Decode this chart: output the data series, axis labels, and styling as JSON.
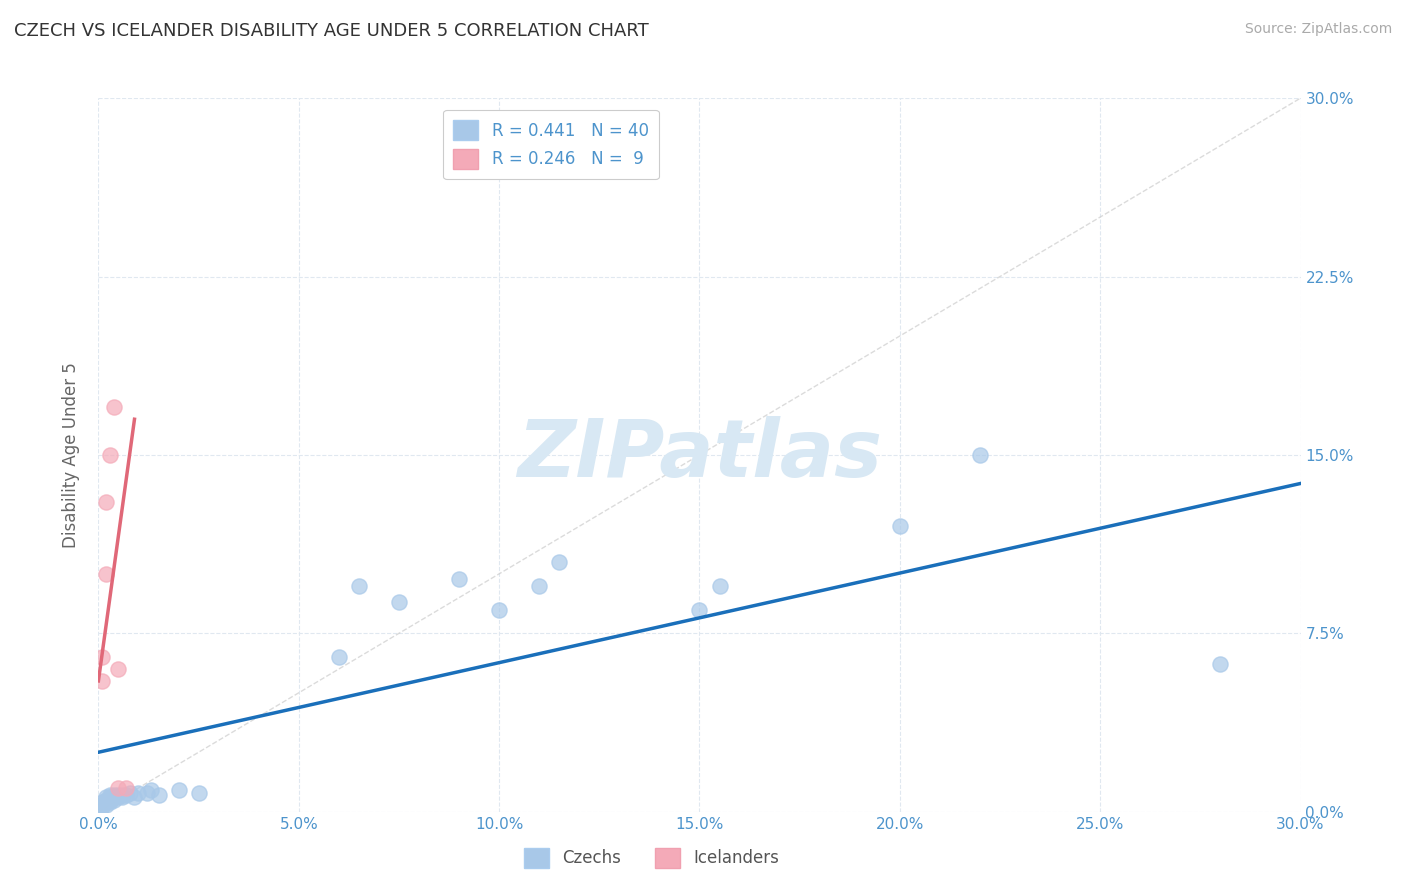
{
  "title": "CZECH VS ICELANDER DISABILITY AGE UNDER 5 CORRELATION CHART",
  "source": "Source: ZipAtlas.com",
  "ylabel": "Disability Age Under 5",
  "xlim": [
    0.0,
    0.3
  ],
  "ylim": [
    0.0,
    0.3
  ],
  "czech_R": 0.441,
  "czech_N": 40,
  "icelander_R": 0.246,
  "icelander_N": 9,
  "czech_color": "#a8c8e8",
  "icelander_color": "#f4aab8",
  "trend_czech_color": "#1a6fba",
  "trend_icelander_color": "#e06878",
  "diagonal_color": "#cccccc",
  "background_color": "#ffffff",
  "grid_color": "#e0e8f0",
  "title_color": "#333333",
  "axis_label_color": "#4d94cc",
  "watermark_color": "#d8e8f4",
  "czech_x": [
    0.001,
    0.001,
    0.001,
    0.001,
    0.002,
    0.002,
    0.002,
    0.002,
    0.003,
    0.003,
    0.003,
    0.003,
    0.004,
    0.004,
    0.004,
    0.005,
    0.005,
    0.006,
    0.006,
    0.007,
    0.008,
    0.009,
    0.01,
    0.012,
    0.013,
    0.015,
    0.02,
    0.025,
    0.06,
    0.065,
    0.075,
    0.09,
    0.1,
    0.11,
    0.115,
    0.15,
    0.155,
    0.2,
    0.22,
    0.28
  ],
  "czech_y": [
    0.002,
    0.003,
    0.003,
    0.004,
    0.003,
    0.004,
    0.005,
    0.006,
    0.004,
    0.005,
    0.006,
    0.007,
    0.005,
    0.006,
    0.007,
    0.006,
    0.007,
    0.006,
    0.007,
    0.007,
    0.008,
    0.006,
    0.008,
    0.008,
    0.009,
    0.007,
    0.009,
    0.008,
    0.065,
    0.095,
    0.088,
    0.098,
    0.085,
    0.095,
    0.105,
    0.085,
    0.095,
    0.12,
    0.15,
    0.062
  ],
  "icelander_x": [
    0.001,
    0.001,
    0.002,
    0.002,
    0.003,
    0.004,
    0.005,
    0.005,
    0.007
  ],
  "icelander_y": [
    0.055,
    0.065,
    0.1,
    0.13,
    0.15,
    0.17,
    0.01,
    0.06,
    0.01
  ],
  "czech_trend_x": [
    0.0,
    0.3
  ],
  "czech_trend_y": [
    0.025,
    0.138
  ],
  "icelander_trend_x": [
    0.0,
    0.009
  ],
  "icelander_trend_y": [
    0.055,
    0.165
  ]
}
